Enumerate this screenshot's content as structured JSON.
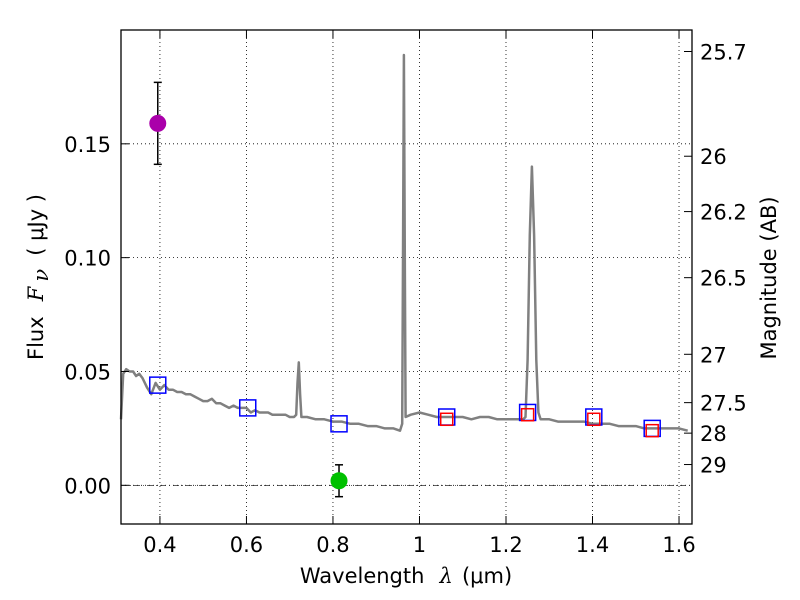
{
  "chart_data": {
    "type": "scatter",
    "x_axis": {
      "label_prefix": "Wavelength",
      "label_symbol": "λ",
      "label_unit": "(μm)",
      "range": [
        0.31,
        1.63
      ],
      "ticks": [
        {
          "value": 0.4,
          "label": "0.4"
        },
        {
          "value": 0.6,
          "label": "0.6"
        },
        {
          "value": 0.8,
          "label": "0.8"
        },
        {
          "value": 1.0,
          "label": "1"
        },
        {
          "value": 1.2,
          "label": "1.2"
        },
        {
          "value": 1.4,
          "label": "1.4"
        },
        {
          "value": 1.6,
          "label": "1.6"
        }
      ]
    },
    "y_axis": {
      "label_prefix": "Flux",
      "label_symbol": "F",
      "label_subscript": "ν",
      "label_unit": "( μJy )",
      "range": [
        -0.017,
        0.2
      ],
      "ticks": [
        {
          "value": 0.0,
          "label": "0.00"
        },
        {
          "value": 0.05,
          "label": "0.05"
        },
        {
          "value": 0.1,
          "label": "0.10"
        },
        {
          "value": 0.15,
          "label": "0.15"
        }
      ]
    },
    "y2_axis": {
      "label": "Magnitude (AB)",
      "ticks": [
        {
          "value": 25.7,
          "label": "25.7"
        },
        {
          "value": 26.0,
          "label": "26"
        },
        {
          "value": 26.2,
          "label": "26.2"
        },
        {
          "value": 26.5,
          "label": "26.5"
        },
        {
          "value": 27.0,
          "label": "27"
        },
        {
          "value": 27.5,
          "label": "27.5"
        },
        {
          "value": 28.0,
          "label": "28"
        },
        {
          "value": 29.0,
          "label": "29"
        }
      ]
    },
    "dotted_grid": true,
    "zero_line": true,
    "series": [
      {
        "name": "model spectrum",
        "kind": "line",
        "color": "#808080",
        "points": [
          [
            0.31,
            0.029
          ],
          [
            0.315,
            0.049
          ],
          [
            0.322,
            0.051
          ],
          [
            0.33,
            0.05
          ],
          [
            0.338,
            0.05
          ],
          [
            0.345,
            0.048
          ],
          [
            0.352,
            0.049
          ],
          [
            0.36,
            0.047
          ],
          [
            0.37,
            0.043
          ],
          [
            0.38,
            0.04
          ],
          [
            0.39,
            0.045
          ],
          [
            0.4,
            0.042
          ],
          [
            0.41,
            0.044
          ],
          [
            0.42,
            0.042
          ],
          [
            0.43,
            0.042
          ],
          [
            0.44,
            0.041
          ],
          [
            0.45,
            0.041
          ],
          [
            0.46,
            0.04
          ],
          [
            0.47,
            0.04
          ],
          [
            0.48,
            0.039
          ],
          [
            0.49,
            0.038
          ],
          [
            0.5,
            0.037
          ],
          [
            0.51,
            0.037
          ],
          [
            0.52,
            0.038
          ],
          [
            0.53,
            0.036
          ],
          [
            0.54,
            0.036
          ],
          [
            0.55,
            0.035
          ],
          [
            0.56,
            0.034
          ],
          [
            0.57,
            0.035
          ],
          [
            0.58,
            0.034
          ],
          [
            0.59,
            0.034
          ],
          [
            0.6,
            0.034
          ],
          [
            0.61,
            0.032
          ],
          [
            0.62,
            0.033
          ],
          [
            0.63,
            0.032
          ],
          [
            0.64,
            0.032
          ],
          [
            0.65,
            0.032
          ],
          [
            0.66,
            0.031
          ],
          [
            0.67,
            0.031
          ],
          [
            0.68,
            0.031
          ],
          [
            0.69,
            0.031
          ],
          [
            0.7,
            0.03
          ],
          [
            0.71,
            0.03
          ],
          [
            0.715,
            0.031
          ],
          [
            0.718,
            0.045
          ],
          [
            0.721,
            0.054
          ],
          [
            0.724,
            0.04
          ],
          [
            0.727,
            0.03
          ],
          [
            0.74,
            0.03
          ],
          [
            0.76,
            0.029
          ],
          [
            0.78,
            0.029
          ],
          [
            0.8,
            0.028
          ],
          [
            0.82,
            0.028
          ],
          [
            0.84,
            0.027
          ],
          [
            0.86,
            0.027
          ],
          [
            0.88,
            0.026
          ],
          [
            0.9,
            0.026
          ],
          [
            0.92,
            0.025
          ],
          [
            0.94,
            0.025
          ],
          [
            0.955,
            0.024
          ],
          [
            0.96,
            0.027
          ],
          [
            0.962,
            0.1
          ],
          [
            0.964,
            0.189
          ],
          [
            0.966,
            0.1
          ],
          [
            0.968,
            0.03
          ],
          [
            0.98,
            0.031
          ],
          [
            1.0,
            0.032
          ],
          [
            1.02,
            0.031
          ],
          [
            1.04,
            0.03
          ],
          [
            1.06,
            0.03
          ],
          [
            1.08,
            0.03
          ],
          [
            1.1,
            0.03
          ],
          [
            1.12,
            0.029
          ],
          [
            1.14,
            0.03
          ],
          [
            1.16,
            0.03
          ],
          [
            1.18,
            0.029
          ],
          [
            1.2,
            0.029
          ],
          [
            1.22,
            0.029
          ],
          [
            1.24,
            0.029
          ],
          [
            1.245,
            0.03
          ],
          [
            1.25,
            0.055
          ],
          [
            1.255,
            0.11
          ],
          [
            1.26,
            0.14
          ],
          [
            1.265,
            0.11
          ],
          [
            1.27,
            0.055
          ],
          [
            1.275,
            0.032
          ],
          [
            1.28,
            0.029
          ],
          [
            1.3,
            0.029
          ],
          [
            1.32,
            0.028
          ],
          [
            1.34,
            0.028
          ],
          [
            1.36,
            0.028
          ],
          [
            1.38,
            0.028
          ],
          [
            1.4,
            0.027
          ],
          [
            1.42,
            0.027
          ],
          [
            1.44,
            0.027
          ],
          [
            1.46,
            0.026
          ],
          [
            1.48,
            0.026
          ],
          [
            1.5,
            0.026
          ],
          [
            1.52,
            0.025
          ],
          [
            1.54,
            0.025
          ],
          [
            1.56,
            0.025
          ],
          [
            1.58,
            0.025
          ],
          [
            1.6,
            0.025
          ],
          [
            1.62,
            0.024
          ]
        ]
      },
      {
        "name": "model photometry",
        "kind": "open-square",
        "color": "#0000ff",
        "points": [
          [
            0.395,
            0.044
          ],
          [
            0.603,
            0.034
          ],
          [
            0.814,
            0.027
          ],
          [
            1.063,
            0.03
          ],
          [
            1.25,
            0.032
          ],
          [
            1.403,
            0.03
          ],
          [
            1.538,
            0.025
          ]
        ]
      },
      {
        "name": "observed photometry",
        "kind": "open-square-small",
        "color": "#ff0000",
        "points": [
          [
            1.063,
            0.029
          ],
          [
            1.25,
            0.031
          ],
          [
            1.403,
            0.029
          ],
          [
            1.538,
            0.024
          ]
        ]
      },
      {
        "name": "detections",
        "kind": "circle-errorbar",
        "points": [
          {
            "x": 0.395,
            "y": 0.159,
            "err": 0.018,
            "color": "#aa00aa"
          },
          {
            "x": 0.814,
            "y": 0.002,
            "err": 0.007,
            "color": "#00c000"
          }
        ]
      }
    ]
  }
}
